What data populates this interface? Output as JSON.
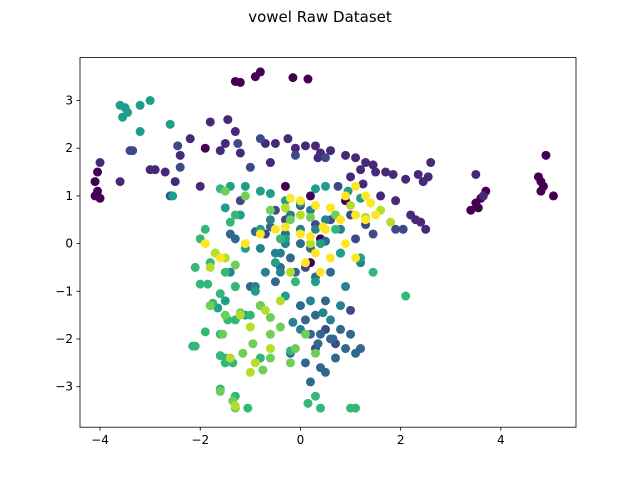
{
  "chart_data": {
    "type": "scatter",
    "title": "vowel Raw Dataset",
    "xlabel": "",
    "ylabel": "",
    "xlim": [
      -4.4,
      5.5
    ],
    "ylim": [
      -3.85,
      3.9
    ],
    "x_ticks": [
      -4,
      -2,
      0,
      2,
      4
    ],
    "y_ticks": [
      -3,
      -2,
      -1,
      0,
      1,
      2,
      3
    ],
    "x_tick_labels": [
      "−4",
      "−2",
      "0",
      "2",
      "4"
    ],
    "y_tick_labels": [
      "−3",
      "−2",
      "−1",
      "0",
      "1",
      "2",
      "3"
    ],
    "grid": false,
    "legend": "none",
    "colormap": "viridis",
    "class_colors": [
      "#440154",
      "#482878",
      "#3e4989",
      "#31688e",
      "#26828e",
      "#1f9e89",
      "#35b779",
      "#6ece58",
      "#b5de2b",
      "#fde725"
    ],
    "series": [
      {
        "values": [
          [
            -1.3,
            3.4
          ],
          [
            -1.2,
            3.38
          ],
          [
            -0.9,
            3.5
          ],
          [
            -0.8,
            3.6
          ],
          [
            -0.15,
            3.48
          ],
          [
            0.15,
            3.45
          ],
          [
            -4.1,
            1.0
          ],
          [
            -4.0,
            0.95
          ],
          [
            -4.05,
            1.1
          ],
          [
            -4.1,
            1.3
          ],
          [
            -4.05,
            1.5
          ],
          [
            3.4,
            0.7
          ],
          [
            3.5,
            0.85
          ],
          [
            3.6,
            0.95
          ],
          [
            3.7,
            1.1
          ],
          [
            3.55,
            0.75
          ],
          [
            4.8,
            1.3
          ],
          [
            4.75,
            1.4
          ],
          [
            4.9,
            1.85
          ],
          [
            5.05,
            1.0
          ],
          [
            4.8,
            1.1
          ],
          [
            4.85,
            1.2
          ],
          [
            -0.3,
            1.2
          ],
          [
            0.4,
            0.1
          ],
          [
            0.2,
            1.0
          ],
          [
            -1.9,
            2.0
          ],
          [
            0.9,
            0.9
          ],
          [
            0.2,
            -0.4
          ]
        ]
      },
      {
        "values": [
          [
            -1.8,
            2.55
          ],
          [
            -1.45,
            2.6
          ],
          [
            -1.3,
            2.35
          ],
          [
            -1.5,
            2.1
          ],
          [
            -1.2,
            1.9
          ],
          [
            -0.7,
            2.1
          ],
          [
            -0.5,
            2.1
          ],
          [
            -0.25,
            2.2
          ],
          [
            -0.1,
            2.0
          ],
          [
            0.1,
            2.05
          ],
          [
            0.3,
            2.05
          ],
          [
            0.4,
            1.9
          ],
          [
            0.6,
            1.95
          ],
          [
            0.9,
            1.85
          ],
          [
            1.1,
            1.8
          ],
          [
            1.3,
            1.7
          ],
          [
            1.45,
            1.65
          ],
          [
            1.7,
            1.5
          ],
          [
            1.85,
            1.45
          ],
          [
            2.1,
            1.35
          ],
          [
            2.35,
            1.45
          ],
          [
            2.55,
            1.4
          ],
          [
            2.6,
            1.7
          ],
          [
            2.45,
            1.3
          ],
          [
            -2.9,
            1.55
          ],
          [
            -3.0,
            1.55
          ],
          [
            -2.7,
            1.5
          ],
          [
            -2.2,
            2.2
          ],
          [
            -2.4,
            1.85
          ],
          [
            -1.6,
            1.95
          ],
          [
            -0.6,
            1.7
          ],
          [
            1.0,
            1.4
          ],
          [
            1.6,
            1.0
          ],
          [
            1.9,
            0.9
          ],
          [
            2.3,
            0.5
          ],
          [
            2.4,
            0.45
          ],
          [
            2.5,
            0.3
          ],
          [
            1.5,
            1.5
          ],
          [
            2.2,
            0.6
          ],
          [
            3.5,
            1.45
          ],
          [
            3.65,
            1.0
          ],
          [
            1.25,
            1.25
          ],
          [
            -4.0,
            1.7
          ],
          [
            -3.6,
            1.3
          ],
          [
            -2.0,
            1.2
          ],
          [
            -2.5,
            1.3
          ],
          [
            0.35,
            1.8
          ],
          [
            1.2,
            1.55
          ]
        ]
      },
      {
        "values": [
          [
            -3.4,
            1.95
          ],
          [
            -3.35,
            1.95
          ],
          [
            -2.45,
            2.05
          ],
          [
            -2.4,
            1.6
          ],
          [
            -1.25,
            2.1
          ],
          [
            -0.8,
            2.2
          ],
          [
            -0.1,
            1.85
          ],
          [
            0.5,
            1.8
          ],
          [
            0.75,
            1.2
          ],
          [
            -1.0,
            1.6
          ],
          [
            -0.5,
            0.7
          ],
          [
            0.0,
            0.8
          ],
          [
            0.3,
            0.4
          ],
          [
            0.6,
            0.5
          ],
          [
            1.0,
            0.6
          ],
          [
            1.45,
            0.2
          ],
          [
            1.9,
            0.3
          ],
          [
            2.05,
            0.3
          ],
          [
            -1.2,
            0.9
          ],
          [
            -0.3,
            0.5
          ],
          [
            0.8,
            -0.2
          ],
          [
            1.3,
            0.4
          ],
          [
            -0.7,
            0.2
          ],
          [
            0.1,
            -0.5
          ],
          [
            0.5,
            -1.8
          ],
          [
            0.7,
            -2.1
          ],
          [
            0.3,
            -2.2
          ],
          [
            1.0,
            -1.4
          ],
          [
            -2.6,
            1.0
          ],
          [
            1.1,
            0.1
          ]
        ]
      },
      {
        "values": [
          [
            -1.4,
            0.2
          ],
          [
            -1.3,
            0.1
          ],
          [
            -0.9,
            0.25
          ],
          [
            -0.6,
            0.35
          ],
          [
            -0.3,
            0.2
          ],
          [
            0.0,
            0.0
          ],
          [
            0.2,
            -0.1
          ],
          [
            0.5,
            0.05
          ],
          [
            -0.2,
            -0.3
          ],
          [
            -0.4,
            -0.5
          ],
          [
            -0.1,
            -0.6
          ],
          [
            0.3,
            -0.7
          ],
          [
            0.6,
            -0.6
          ],
          [
            -0.5,
            -0.8
          ],
          [
            0.0,
            -1.3
          ],
          [
            0.1,
            -1.6
          ],
          [
            0.3,
            -1.5
          ],
          [
            0.5,
            -1.2
          ],
          [
            0.2,
            -1.9
          ],
          [
            0.4,
            -1.9
          ],
          [
            0.6,
            -2.0
          ],
          [
            0.8,
            -1.8
          ],
          [
            1.0,
            -1.9
          ],
          [
            0.9,
            -2.2
          ],
          [
            0.4,
            -2.6
          ],
          [
            0.1,
            -2.5
          ],
          [
            -0.2,
            -2.3
          ],
          [
            0.7,
            -2.4
          ],
          [
            1.1,
            -2.3
          ],
          [
            -0.8,
            -1.3
          ],
          [
            -1.0,
            -0.9
          ],
          [
            0.35,
            -2.1
          ],
          [
            0.65,
            -2.0
          ],
          [
            1.2,
            -2.2
          ],
          [
            0.2,
            -2.9
          ],
          [
            0.5,
            -2.7
          ]
        ]
      },
      {
        "values": [
          [
            -0.6,
            0.5
          ],
          [
            -0.2,
            0.6
          ],
          [
            0.2,
            0.7
          ],
          [
            0.5,
            0.5
          ],
          [
            0.8,
            0.3
          ],
          [
            -0.3,
            0.0
          ],
          [
            -0.5,
            -0.2
          ],
          [
            -0.7,
            -0.6
          ],
          [
            -0.4,
            -0.6
          ],
          [
            0.2,
            -1.2
          ],
          [
            0.45,
            -1.45
          ],
          [
            0.8,
            -1.3
          ],
          [
            -0.15,
            -1.65
          ],
          [
            0.0,
            -1.8
          ],
          [
            0.6,
            -1.6
          ],
          [
            0.9,
            -0.9
          ],
          [
            -1.3,
            -0.9
          ],
          [
            -1.4,
            -0.6
          ],
          [
            -0.8,
            -0.1
          ],
          [
            0.0,
            0.3
          ],
          [
            1.2,
            -0.4
          ],
          [
            -0.9,
            -0.9
          ],
          [
            -0.4,
            -0.2
          ],
          [
            0.3,
            0.3
          ]
        ]
      },
      {
        "values": [
          [
            -3.6,
            2.9
          ],
          [
            -3.55,
            2.65
          ],
          [
            -3.45,
            2.75
          ],
          [
            -3.5,
            2.85
          ],
          [
            -3.2,
            2.9
          ],
          [
            -3.0,
            3.0
          ],
          [
            -3.2,
            2.35
          ],
          [
            -2.6,
            2.5
          ],
          [
            -2.55,
            1.0
          ],
          [
            -1.4,
            1.2
          ],
          [
            -1.1,
            1.2
          ],
          [
            -0.8,
            1.1
          ],
          [
            -0.6,
            1.05
          ],
          [
            -0.3,
            0.9
          ],
          [
            0.0,
            0.85
          ],
          [
            0.3,
            1.15
          ],
          [
            0.5,
            1.2
          ],
          [
            0.95,
            1.1
          ],
          [
            1.2,
            0.95
          ],
          [
            -1.5,
            0.75
          ],
          [
            -1.2,
            0.6
          ],
          [
            -0.8,
            0.3
          ],
          [
            -0.3,
            0.1
          ],
          [
            0.4,
            0.0
          ],
          [
            0.8,
            -0.2
          ],
          [
            1.2,
            -0.3
          ],
          [
            -1.1,
            -0.1
          ],
          [
            -0.5,
            -0.4
          ],
          [
            0.3,
            -0.8
          ],
          [
            -0.3,
            -1.1
          ],
          [
            -0.9,
            -1.0
          ],
          [
            -1.1,
            -1.5
          ],
          [
            -1.5,
            -1.2
          ],
          [
            -1.65,
            -1.35
          ]
        ]
      },
      {
        "values": [
          [
            -1.6,
            1.15
          ],
          [
            -1.3,
            0.6
          ],
          [
            -1.4,
            0.45
          ],
          [
            -1.9,
            0.3
          ],
          [
            -2.0,
            0.1
          ],
          [
            -1.8,
            -0.4
          ],
          [
            -2.1,
            -0.5
          ],
          [
            -1.5,
            -0.6
          ],
          [
            -1.3,
            -0.9
          ],
          [
            -1.85,
            -0.85
          ],
          [
            -2.0,
            -0.85
          ],
          [
            -1.6,
            -1.05
          ],
          [
            -1.75,
            -1.25
          ],
          [
            -1.45,
            -1.6
          ],
          [
            -1.3,
            -1.6
          ],
          [
            -1.6,
            -1.9
          ],
          [
            -1.9,
            -1.85
          ],
          [
            -2.15,
            -2.15
          ],
          [
            -2.1,
            -2.15
          ],
          [
            -1.6,
            -2.35
          ],
          [
            -1.5,
            -2.4
          ],
          [
            -1.35,
            -2.5
          ],
          [
            -1.5,
            -2.5
          ],
          [
            -1.3,
            -3.2
          ],
          [
            -1.6,
            -3.05
          ],
          [
            -1.05,
            -3.45
          ],
          [
            0.15,
            -3.35
          ],
          [
            1.0,
            -3.45
          ],
          [
            1.1,
            -3.45
          ],
          [
            0.4,
            -3.45
          ],
          [
            1.45,
            -0.6
          ],
          [
            2.1,
            -1.1
          ],
          [
            -0.1,
            -0.8
          ],
          [
            -0.8,
            -2.4
          ],
          [
            -0.2,
            -2.25
          ],
          [
            0.3,
            -3.2
          ],
          [
            -1.0,
            -1.5
          ],
          [
            0.7,
            0.3
          ],
          [
            -0.4,
            0.1
          ]
        ]
      },
      {
        "values": [
          [
            -1.5,
            1.1
          ],
          [
            -1.1,
            1.0
          ],
          [
            -0.6,
            0.7
          ],
          [
            -0.2,
            0.5
          ],
          [
            0.2,
            0.55
          ],
          [
            0.7,
            0.6
          ],
          [
            -1.7,
            -0.2
          ],
          [
            -1.3,
            -0.45
          ],
          [
            -1.8,
            -1.3
          ],
          [
            -1.5,
            -1.5
          ],
          [
            -1.2,
            -1.45
          ],
          [
            -1.55,
            -1.9
          ],
          [
            -0.8,
            -1.3
          ],
          [
            -0.6,
            -1.55
          ],
          [
            -0.4,
            -1.75
          ],
          [
            -0.6,
            -1.9
          ],
          [
            -0.95,
            -2.1
          ],
          [
            -1.15,
            -2.3
          ],
          [
            -0.75,
            -2.65
          ],
          [
            -0.6,
            -2.4
          ],
          [
            -0.2,
            -2.5
          ],
          [
            0.1,
            -1.9
          ],
          [
            0.3,
            -2.3
          ],
          [
            -0.1,
            -2.2
          ],
          [
            -1.3,
            -3.45
          ],
          [
            -1.35,
            -3.3
          ],
          [
            -1.6,
            -3.1
          ]
        ]
      },
      {
        "values": [
          [
            -1.7,
            -0.2
          ],
          [
            -1.5,
            -0.3
          ],
          [
            -1.8,
            -0.5
          ],
          [
            -1.2,
            -1.5
          ],
          [
            -1.0,
            -1.75
          ],
          [
            -0.7,
            -1.4
          ],
          [
            -0.4,
            -1.2
          ],
          [
            -0.2,
            -0.6
          ],
          [
            0.2,
            0.0
          ],
          [
            -1.0,
            -2.7
          ],
          [
            -0.9,
            -2.5
          ],
          [
            -0.6,
            -2.2
          ],
          [
            -1.4,
            -2.4
          ],
          [
            -1.3,
            -3.4
          ],
          [
            -0.3,
            0.75
          ],
          [
            0.0,
            0.6
          ],
          [
            1.0,
            0.8
          ],
          [
            1.3,
            0.55
          ],
          [
            1.6,
            0.7
          ],
          [
            1.8,
            0.45
          ]
        ]
      },
      {
        "values": [
          [
            -0.2,
            0.95
          ],
          [
            0.0,
            0.9
          ],
          [
            0.3,
            0.8
          ],
          [
            0.6,
            0.75
          ],
          [
            0.9,
            1.0
          ],
          [
            1.1,
            1.2
          ],
          [
            1.3,
            1.0
          ],
          [
            1.4,
            0.85
          ],
          [
            1.5,
            0.6
          ],
          [
            1.3,
            0.5
          ],
          [
            1.1,
            0.6
          ],
          [
            0.8,
            0.5
          ],
          [
            0.5,
            0.3
          ],
          [
            0.2,
            0.15
          ],
          [
            -0.3,
            0.35
          ],
          [
            -0.5,
            0.3
          ],
          [
            -0.8,
            0.2
          ],
          [
            -1.1,
            0.0
          ],
          [
            -1.6,
            -0.3
          ],
          [
            -1.9,
            0.0
          ],
          [
            0.3,
            -0.2
          ],
          [
            0.6,
            -0.3
          ],
          [
            0.9,
            0.0
          ],
          [
            1.1,
            -0.3
          ],
          [
            0.4,
            -0.6
          ],
          [
            0.1,
            -0.4
          ],
          [
            0.0,
            0.2
          ],
          [
            0.45,
            0.35
          ]
        ]
      }
    ]
  }
}
